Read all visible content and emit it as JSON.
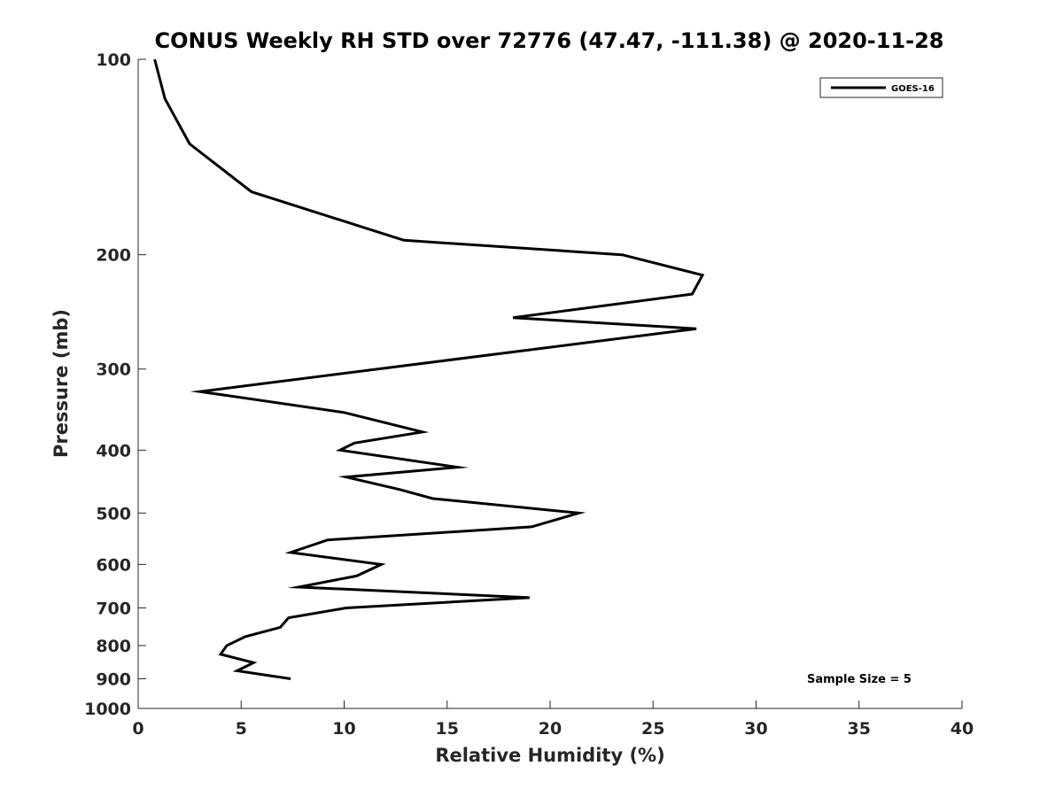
{
  "chart_data": {
    "type": "line",
    "title": "CONUS Weekly RH STD over 72776 (47.47, -111.38) @ 2020-11-28",
    "xlabel": "Relative Humidity (%)",
    "ylabel": "Pressure (mb)",
    "xlim": [
      0,
      40
    ],
    "ylim": [
      100,
      1000
    ],
    "yscale": "log",
    "y_reversed": true,
    "x_ticks": [
      "0",
      "5",
      "10",
      "15",
      "20",
      "25",
      "30",
      "35",
      "40"
    ],
    "y_ticks": [
      "100",
      "200",
      "300",
      "400",
      "500",
      "600",
      "700",
      "800",
      "900",
      "1000"
    ],
    "grid": false,
    "legend_position": "top-right",
    "annotation": "Sample Size = 5",
    "series": [
      {
        "name": "GOES-16",
        "color": "#000000",
        "points": [
          [
            0.8,
            100
          ],
          [
            1.3,
            115
          ],
          [
            2.5,
            135
          ],
          [
            5.5,
            160
          ],
          [
            12.9,
            190
          ],
          [
            23.5,
            200
          ],
          [
            27.4,
            215
          ],
          [
            26.9,
            230
          ],
          [
            18.2,
            250
          ],
          [
            27.1,
            260
          ],
          [
            3.0,
            325
          ],
          [
            10.0,
            350
          ],
          [
            13.8,
            375
          ],
          [
            10.5,
            390
          ],
          [
            9.8,
            400
          ],
          [
            15.5,
            425
          ],
          [
            10.1,
            440
          ],
          [
            12.7,
            460
          ],
          [
            14.3,
            475
          ],
          [
            21.4,
            500
          ],
          [
            19.1,
            525
          ],
          [
            9.2,
            550
          ],
          [
            7.4,
            575
          ],
          [
            11.8,
            600
          ],
          [
            10.6,
            625
          ],
          [
            7.8,
            650
          ],
          [
            19.0,
            675
          ],
          [
            10.1,
            700
          ],
          [
            7.3,
            725
          ],
          [
            6.9,
            750
          ],
          [
            5.2,
            775
          ],
          [
            4.3,
            800
          ],
          [
            4.0,
            825
          ],
          [
            5.6,
            850
          ],
          [
            4.8,
            875
          ],
          [
            7.4,
            900
          ]
        ]
      }
    ]
  }
}
